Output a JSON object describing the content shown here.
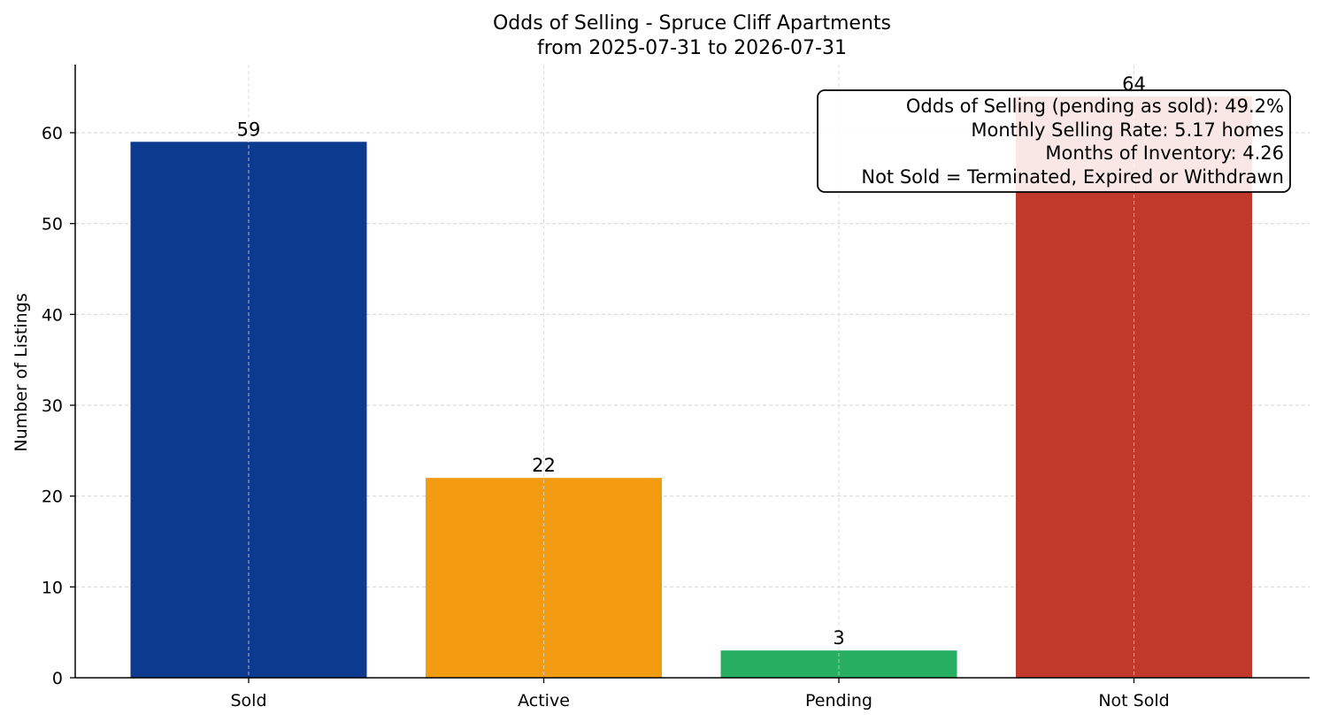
{
  "chart_data": {
    "type": "bar",
    "title": "Odds of Selling - Spruce Cliff Apartments",
    "subtitle": "from 2025-07-31 to 2026-07-31",
    "xlabel": "",
    "ylabel": "Number of Listings",
    "categories": [
      "Sold",
      "Active",
      "Pending",
      "Not Sold"
    ],
    "values": [
      59,
      22,
      3,
      64
    ],
    "colors": [
      "#0b3a8e",
      "#f39c12",
      "#27ae60",
      "#c0392b"
    ],
    "ylim": [
      0,
      67.5
    ],
    "yticks": [
      0,
      10,
      20,
      30,
      40,
      50,
      60
    ],
    "grid": true,
    "info_box": {
      "lines": [
        "Odds of Selling (pending as sold): 49.2%",
        "Monthly Selling Rate: 5.17 homes",
        "Months of Inventory: 4.26",
        "Not Sold = Terminated, Expired or Withdrawn"
      ],
      "placement": "top-right"
    }
  }
}
